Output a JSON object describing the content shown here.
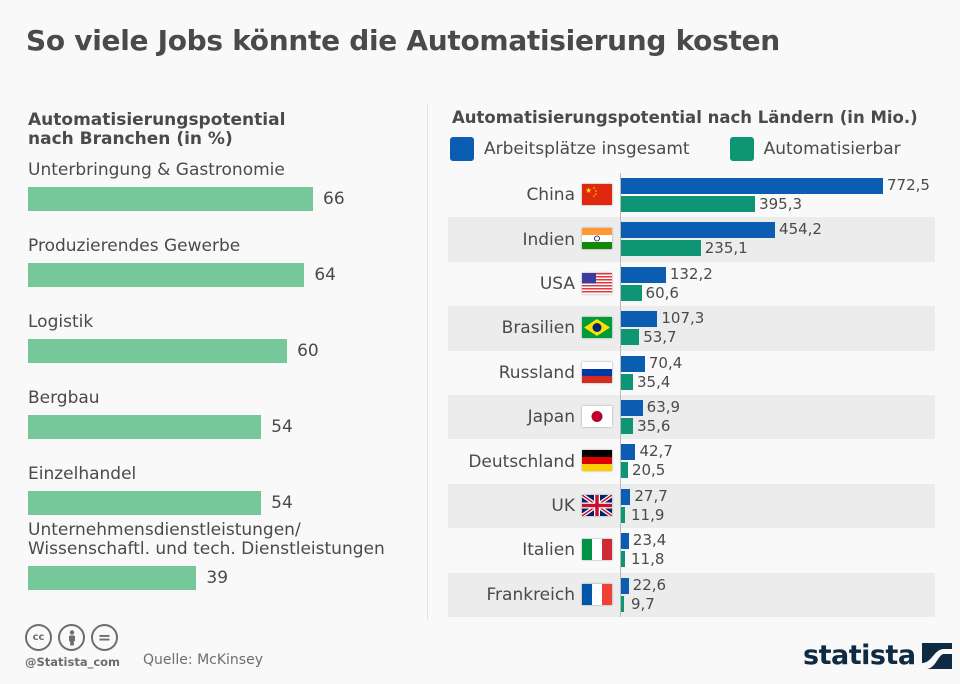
{
  "title": "So viele Jobs könnte die Automatisierung kosten",
  "chart_data": [
    {
      "type": "bar",
      "orientation": "horizontal",
      "title": "Automatisierungspotential nach Branchen (in %)",
      "title_lines": [
        "Automatisierungspotential",
        "nach Branchen (in %)"
      ],
      "categories": [
        "Unterbringung & Gastronomie",
        "Produzierendes Gewerbe",
        "Logistik",
        "Bergbau",
        "Einzelhandel",
        "Unternehmensdienstleistungen/ Wissenschaftl. und tech. Dienstleistungen"
      ],
      "category_lines": [
        [
          "Unterbringung & Gastronomie"
        ],
        [
          "Produzierendes Gewerbe"
        ],
        [
          "Logistik"
        ],
        [
          "Bergbau"
        ],
        [
          "Einzelhandel"
        ],
        [
          "Unternehmensdienstleistungen/",
          "Wissenschaftl. und tech. Dienstleistungen"
        ]
      ],
      "values": [
        66,
        64,
        60,
        54,
        54,
        39
      ],
      "value_labels": [
        "66",
        "64",
        "60",
        "54",
        "54",
        "39"
      ],
      "color": "#76c79a",
      "xlim": [
        0,
        100
      ],
      "grid": false
    },
    {
      "type": "bar",
      "orientation": "horizontal",
      "title": "Automatisierungspotential nach Ländern (in Mio.)",
      "categories": [
        "China",
        "Indien",
        "USA",
        "Brasilien",
        "Russland",
        "Japan",
        "Deutschland",
        "UK",
        "Italien",
        "Frankreich"
      ],
      "flags": [
        "china-flag",
        "india-flag",
        "usa-flag",
        "brazil-flag",
        "russia-flag",
        "japan-flag",
        "germany-flag",
        "uk-flag",
        "italy-flag",
        "france-flag"
      ],
      "series": [
        {
          "name": "Arbeitsplätze insgesamt",
          "color": "#0b5db2",
          "values": [
            772.5,
            454.2,
            132.2,
            107.3,
            70.4,
            63.9,
            42.7,
            27.7,
            23.4,
            22.6
          ],
          "labels": [
            "772,5",
            "454,2",
            "132,2",
            "107,3",
            "70,4",
            "63,9",
            "42,7",
            "27,7",
            "23,4",
            "22,6"
          ]
        },
        {
          "name": "Automatisierbar",
          "color": "#0e9574",
          "values": [
            395.3,
            235.1,
            60.6,
            53.7,
            35.4,
            35.6,
            20.5,
            11.9,
            11.8,
            9.7
          ],
          "labels": [
            "395,3",
            "235,1",
            "60,6",
            "53,7",
            "35,4",
            "35,6",
            "20,5",
            "11,9",
            "11,8",
            "9,7"
          ]
        }
      ],
      "legend": "top-left",
      "xlim": [
        0,
        800
      ],
      "grid": false
    }
  ],
  "footer": {
    "handle": "@Statista_com",
    "source": "Quelle: McKinsey",
    "cc_icons": [
      "cc-icon",
      "by-icon",
      "nd-icon"
    ],
    "cc_glyphs": [
      "cc",
      "",
      "="
    ],
    "logo": "statista"
  }
}
